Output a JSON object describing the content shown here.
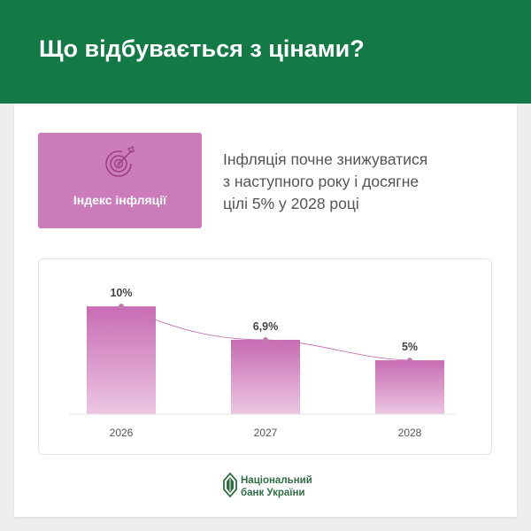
{
  "header": {
    "title": "Що відбувається з цінами?"
  },
  "badge": {
    "label": "Індекс інфляції",
    "icon": "target-icon"
  },
  "intro": {
    "lines": [
      "Інфляція почне знижуватися",
      "з наступного року і досягне",
      "цілі 5% у 2028 році"
    ]
  },
  "chart_data": {
    "type": "bar",
    "categories": [
      "2026",
      "2027",
      "2028"
    ],
    "values": [
      10,
      6.9,
      5
    ],
    "value_labels": [
      "10%",
      "6,9%",
      "5%"
    ],
    "title": "",
    "xlabel": "",
    "ylabel": "",
    "ylim": [
      0,
      11
    ],
    "grid": false,
    "legend": "none",
    "trend_line": true
  },
  "footer": {
    "logo_line1": "Національний",
    "logo_line2": "банк України",
    "logo_icon": "nbu-logo-icon"
  },
  "colors": {
    "header_bg": "#137a45",
    "badge_bg": "#cc7bbb",
    "bar_top": "#c86bb4",
    "bar_bottom": "#ecc6e2",
    "trend_line": "#c27ab0",
    "logo_green": "#2f6e44"
  }
}
